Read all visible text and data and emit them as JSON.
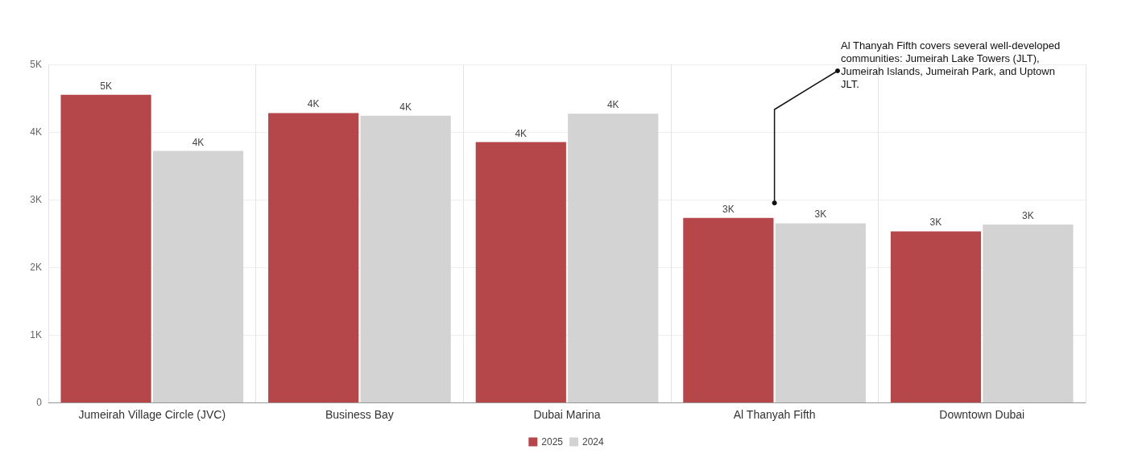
{
  "chart_data": {
    "type": "bar",
    "categories": [
      "Jumeirah Village Circle (JVC)",
      "Business Bay",
      "Dubai Marina",
      "Al Thanyah Fifth",
      "Downtown Dubai"
    ],
    "series": [
      {
        "name": "2025",
        "color": "#b5474b",
        "values": [
          4.55,
          4.28,
          3.85,
          2.73,
          2.53
        ],
        "value_labels": [
          "5K",
          "4K",
          "4K",
          "3K",
          "3K"
        ]
      },
      {
        "name": "2024",
        "color": "#d3d3d3",
        "values": [
          3.72,
          4.24,
          4.27,
          2.65,
          2.63
        ],
        "value_labels": [
          "4K",
          "4K",
          "4K",
          "3K",
          "3K"
        ]
      }
    ],
    "ylim": [
      0,
      5
    ],
    "yticks": [
      {
        "value": 0,
        "label": "0"
      },
      {
        "value": 1,
        "label": "1K"
      },
      {
        "value": 2,
        "label": "2K"
      },
      {
        "value": 3,
        "label": "3K"
      },
      {
        "value": 4,
        "label": "4K"
      },
      {
        "value": 5,
        "label": "5K"
      }
    ],
    "grid": true,
    "legend": "bottom",
    "annotations": [
      {
        "text": "Al Thanyah Fifth covers several well-developed communities: Jumeirah Lake Towers (JLT), Jumeirah Islands, Jumeirah Park, and Uptown JLT.",
        "x": "Al Thanyah Fifth",
        "y": 2.95
      }
    ]
  }
}
